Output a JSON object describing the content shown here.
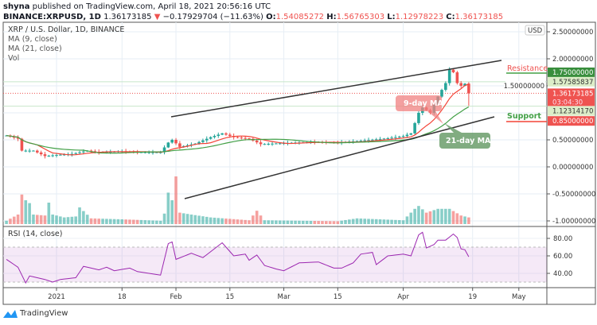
{
  "header": {
    "author": "shyna",
    "published_text": "published on TradingView.com, April 18, 2021 20:56:16 UTC",
    "symbol": "BINANCE:XRPUSD, 1D",
    "last": "1.36173185",
    "change": "−0.17929704 (−11.63%)",
    "o_label": "O:",
    "o": "1.54085272",
    "h_label": "H:",
    "h": "1.56765303",
    "l_label": "L:",
    "l": "1.12978223",
    "c_label": "C:",
    "c": "1.36173185"
  },
  "legend": {
    "title": "XRP / U.S. Dollar, 1D, BINANCE",
    "ma9": "MA (9, close)",
    "ma21": "MA (21, close)",
    "vol": "Vol",
    "rsi": "RSI (14, close)"
  },
  "footer": {
    "brand": "TradingView"
  },
  "colors": {
    "up": "#26a69a",
    "down": "#ef5350",
    "ma9": "#f44336",
    "ma21": "#43a047",
    "rsi": "#9c27b0",
    "trend": "#333333"
  },
  "chart_data": {
    "type": "candlestick",
    "currency": "USD",
    "price_axis_ticks": [
      "2.50000000",
      "2.00000000",
      "1.50000000",
      "0.50000000",
      "0.00000000",
      "-0.50000000",
      "-1.00000000"
    ],
    "price_axis_values": [
      2.5,
      2.0,
      1.5,
      0.5,
      0.0,
      -0.5,
      -1.0
    ],
    "date_axis_ticks": [
      {
        "label": "2021",
        "date": "2021-01-01"
      },
      {
        "label": "18",
        "date": "2021-01-18"
      },
      {
        "label": "Feb",
        "date": "2021-02-01"
      },
      {
        "label": "15",
        "date": "2021-02-15"
      },
      {
        "label": "Mar",
        "date": "2021-03-01"
      },
      {
        "label": "15",
        "date": "2021-03-15"
      },
      {
        "label": "Apr",
        "date": "2021-04-01"
      },
      {
        "label": "19",
        "date": "2021-04-19"
      },
      {
        "label": "May",
        "date": "2021-05-01"
      }
    ],
    "close_keypoints": [
      [
        "2020-12-19",
        0.58
      ],
      [
        "2020-12-22",
        0.52
      ],
      [
        "2020-12-23",
        0.3
      ],
      [
        "2020-12-26",
        0.3
      ],
      [
        "2020-12-29",
        0.2
      ],
      [
        "2021-01-01",
        0.22
      ],
      [
        "2021-01-05",
        0.24
      ],
      [
        "2021-01-09",
        0.3
      ],
      [
        "2021-01-12",
        0.27
      ],
      [
        "2021-01-18",
        0.29
      ],
      [
        "2021-01-22",
        0.27
      ],
      [
        "2021-01-28",
        0.27
      ],
      [
        "2021-01-30",
        0.45
      ],
      [
        "2021-01-31",
        0.5
      ],
      [
        "2021-02-02",
        0.37
      ],
      [
        "2021-02-06",
        0.43
      ],
      [
        "2021-02-10",
        0.55
      ],
      [
        "2021-02-13",
        0.62
      ],
      [
        "2021-02-16",
        0.55
      ],
      [
        "2021-02-20",
        0.52
      ],
      [
        "2021-02-23",
        0.42
      ],
      [
        "2021-03-01",
        0.44
      ],
      [
        "2021-03-08",
        0.46
      ],
      [
        "2021-03-15",
        0.45
      ],
      [
        "2021-03-22",
        0.49
      ],
      [
        "2021-03-28",
        0.53
      ],
      [
        "2021-04-01",
        0.57
      ],
      [
        "2021-04-03",
        0.62
      ],
      [
        "2021-04-05",
        1.0
      ],
      [
        "2021-04-06",
        1.1
      ],
      [
        "2021-04-08",
        1.0
      ],
      [
        "2021-04-10",
        1.3
      ],
      [
        "2021-04-12",
        1.55
      ],
      [
        "2021-04-13",
        1.8
      ],
      [
        "2021-04-14",
        1.75
      ],
      [
        "2021-04-15",
        1.55
      ],
      [
        "2021-04-16",
        1.5
      ],
      [
        "2021-04-17",
        1.54
      ],
      [
        "2021-04-18",
        1.36
      ]
    ],
    "last_candle": {
      "open": 1.54085272,
      "high": 1.56765303,
      "low": 1.12978223,
      "close": 1.36173185
    },
    "price_labels": [
      {
        "value": 1.75,
        "text": "1.75000000",
        "kind": "resistance"
      },
      {
        "value": 1.57585837,
        "text": "1.57585837",
        "kind": "ma21-level"
      },
      {
        "value": 1.36173185,
        "text": "1.36173185",
        "kind": "last",
        "countdown": "03:04:30"
      },
      {
        "value": 1.1231417,
        "text": "1.12314170",
        "kind": "ma9-level"
      },
      {
        "value": 0.85,
        "text": "0.85000000",
        "kind": "support"
      }
    ],
    "annotations": {
      "resistance": "Resistance",
      "support": "Support",
      "ma9_callout": "9-day MA",
      "ma21_callout": "21-day MA"
    },
    "volume_relative_keypoints": [
      [
        "2020-12-19",
        0.07
      ],
      [
        "2020-12-22",
        0.2
      ],
      [
        "2020-12-23",
        0.62
      ],
      [
        "2020-12-24",
        0.5
      ],
      [
        "2020-12-25",
        0.44
      ],
      [
        "2020-12-26",
        0.2
      ],
      [
        "2020-12-29",
        0.18
      ],
      [
        "2020-12-30",
        0.45
      ],
      [
        "2020-12-31",
        0.2
      ],
      [
        "2021-01-03",
        0.14
      ],
      [
        "2021-01-06",
        0.16
      ],
      [
        "2021-01-07",
        0.35
      ],
      [
        "2021-01-10",
        0.12
      ],
      [
        "2021-01-18",
        0.1
      ],
      [
        "2021-01-28",
        0.07
      ],
      [
        "2021-01-29",
        0.22
      ],
      [
        "2021-01-30",
        0.66
      ],
      [
        "2021-01-31",
        0.5
      ],
      [
        "2021-02-01",
        1.0
      ],
      [
        "2021-02-02",
        0.24
      ],
      [
        "2021-02-05",
        0.2
      ],
      [
        "2021-02-10",
        0.14
      ],
      [
        "2021-02-20",
        0.08
      ],
      [
        "2021-02-22",
        0.28
      ],
      [
        "2021-02-24",
        0.08
      ],
      [
        "2021-03-15",
        0.06
      ],
      [
        "2021-03-20",
        0.12
      ],
      [
        "2021-04-01",
        0.08
      ],
      [
        "2021-04-04",
        0.32
      ],
      [
        "2021-04-05",
        0.38
      ],
      [
        "2021-04-07",
        0.24
      ],
      [
        "2021-04-10",
        0.32
      ],
      [
        "2021-04-13",
        0.32
      ],
      [
        "2021-04-16",
        0.18
      ],
      [
        "2021-04-18",
        0.14
      ]
    ],
    "rsi_axis_ticks": [
      "80.00",
      "60.00",
      "40.00"
    ],
    "rsi_axis_values": [
      80,
      60,
      40
    ],
    "rsi_band": [
      30,
      70
    ],
    "rsi_keypoints": [
      [
        "2020-12-19",
        56
      ],
      [
        "2020-12-22",
        47
      ],
      [
        "2020-12-24",
        29
      ],
      [
        "2020-12-25",
        37
      ],
      [
        "2020-12-29",
        33
      ],
      [
        "2020-12-31",
        30
      ],
      [
        "2021-01-02",
        33
      ],
      [
        "2021-01-06",
        35
      ],
      [
        "2021-01-08",
        48
      ],
      [
        "2021-01-12",
        44
      ],
      [
        "2021-01-14",
        47
      ],
      [
        "2021-01-16",
        43
      ],
      [
        "2021-01-20",
        46
      ],
      [
        "2021-01-22",
        42
      ],
      [
        "2021-01-28",
        38
      ],
      [
        "2021-01-30",
        74
      ],
      [
        "2021-01-31",
        76
      ],
      [
        "2021-02-01",
        56
      ],
      [
        "2021-02-05",
        63
      ],
      [
        "2021-02-08",
        58
      ],
      [
        "2021-02-13",
        75
      ],
      [
        "2021-02-16",
        60
      ],
      [
        "2021-02-19",
        62
      ],
      [
        "2021-02-20",
        55
      ],
      [
        "2021-02-22",
        61
      ],
      [
        "2021-02-24",
        49
      ],
      [
        "2021-02-27",
        45
      ],
      [
        "2021-03-01",
        43
      ],
      [
        "2021-03-05",
        52
      ],
      [
        "2021-03-10",
        53
      ],
      [
        "2021-03-14",
        46
      ],
      [
        "2021-03-16",
        46
      ],
      [
        "2021-03-19",
        52
      ],
      [
        "2021-03-21",
        62
      ],
      [
        "2021-03-24",
        64
      ],
      [
        "2021-03-25",
        50
      ],
      [
        "2021-03-28",
        60
      ],
      [
        "2021-04-01",
        62
      ],
      [
        "2021-04-03",
        60
      ],
      [
        "2021-04-05",
        84
      ],
      [
        "2021-04-06",
        87
      ],
      [
        "2021-04-07",
        69
      ],
      [
        "2021-04-09",
        73
      ],
      [
        "2021-04-10",
        78
      ],
      [
        "2021-04-12",
        78
      ],
      [
        "2021-04-14",
        85
      ],
      [
        "2021-04-15",
        81
      ],
      [
        "2021-04-16",
        68
      ],
      [
        "2021-04-17",
        67
      ],
      [
        "2021-04-18",
        59
      ]
    ]
  }
}
